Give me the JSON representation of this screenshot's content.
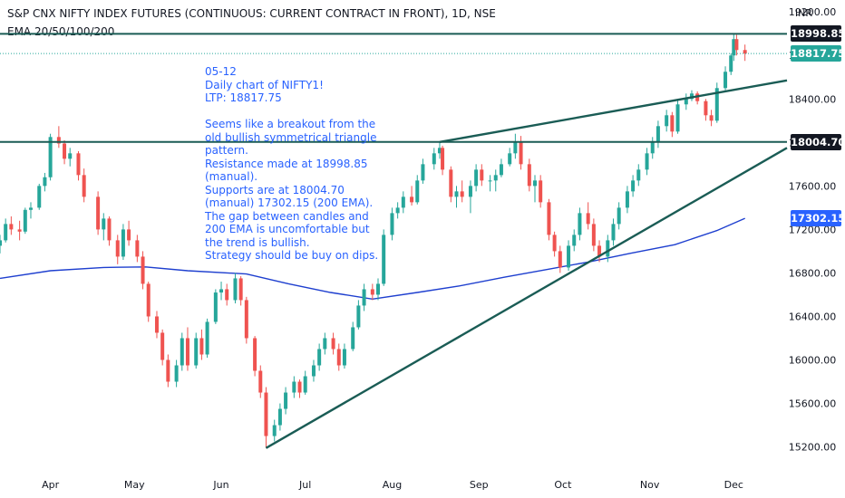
{
  "header": {
    "title": "S&P CNX NIFTY INDEX FUTURES (CONTINUOUS: CURRENT CONTRACT IN FRONT), 1D, NSE",
    "indicator": "EMA 20/50/100/200"
  },
  "currency": "INR",
  "annotation": "05-12\nDaily chart of NIFTY1!\nLTP: 18817.75\n\nSeems like a breakout from the\nold bullish symmetrical triangle\npattern.\nResistance made at 18998.85\n(manual).\nSupports are at 18004.70\n(manual) 17302.15 (200 EMA).\nThe gap between candles and\n200 EMA is uncomfortable but\nthe trend is bullish.\nStrategy should be buy on dips.",
  "price_tags": [
    {
      "label": "18998.85",
      "value": 18998.85,
      "bg": "#131722",
      "fg": "#ffffff"
    },
    {
      "label": "18817.75",
      "value": 18817.75,
      "bg": "#26a69a",
      "fg": "#ffffff"
    },
    {
      "label": "18004.70",
      "value": 18004.7,
      "bg": "#131722",
      "fg": "#ffffff"
    },
    {
      "label": "17302.15",
      "value": 17302.15,
      "bg": "#2962ff",
      "fg": "#ffffff"
    }
  ],
  "colors": {
    "up": "#26a69a",
    "down": "#ef5350",
    "ema": "#1e3fcf",
    "lines": "#1a5c55"
  },
  "chart_data": {
    "type": "candlestick",
    "title": "S&P CNX NIFTY INDEX FUTURES (CONTINUOUS: CURRENT CONTRACT IN FRONT), 1D, NSE",
    "x_ticks": [
      "Apr",
      "May",
      "Jun",
      "Jul",
      "Aug",
      "Sep",
      "Oct",
      "Nov",
      "Dec"
    ],
    "y_ticks": [
      15200,
      15600,
      16000,
      16400,
      16800,
      17200,
      17600,
      18000,
      18400,
      18800,
      19200
    ],
    "ylim": [
      14980,
      19310
    ],
    "x_range": [
      "2022-03-14",
      "2022-12-20"
    ],
    "last_price": 18817.75,
    "horizontal_lines": [
      18998.85,
      18004.7
    ],
    "trendlines": [
      {
        "from": [
          "2022-06-17",
          15190
        ],
        "to": [
          "2022-12-20",
          17950
        ]
      },
      {
        "from": [
          "2022-08-18",
          18004
        ],
        "to": [
          "2022-12-20",
          18570
        ]
      }
    ],
    "ema_200": [
      [
        "2022-03-14",
        16750
      ],
      [
        "2022-04-01",
        16820
      ],
      [
        "2022-04-20",
        16850
      ],
      [
        "2022-05-05",
        16855
      ],
      [
        "2022-05-20",
        16820
      ],
      [
        "2022-06-10",
        16790
      ],
      [
        "2022-06-25",
        16700
      ],
      [
        "2022-07-10",
        16620
      ],
      [
        "2022-07-25",
        16560
      ],
      [
        "2022-08-10",
        16620
      ],
      [
        "2022-08-25",
        16680
      ],
      [
        "2022-09-10",
        16760
      ],
      [
        "2022-09-25",
        16830
      ],
      [
        "2022-10-10",
        16900
      ],
      [
        "2022-10-25",
        16980
      ],
      [
        "2022-11-10",
        17060
      ],
      [
        "2022-11-25",
        17190
      ],
      [
        "2022-12-05",
        17302
      ]
    ],
    "candles": [
      [
        "2022-03-14",
        17050,
        17150,
        16980,
        17100
      ],
      [
        "2022-03-16",
        17100,
        17300,
        17080,
        17250
      ],
      [
        "2022-03-18",
        17250,
        17320,
        17150,
        17200
      ],
      [
        "2022-03-21",
        17200,
        17280,
        17100,
        17180
      ],
      [
        "2022-03-23",
        17180,
        17400,
        17160,
        17380
      ],
      [
        "2022-03-25",
        17380,
        17450,
        17300,
        17400
      ],
      [
        "2022-03-28",
        17400,
        17620,
        17380,
        17600
      ],
      [
        "2022-03-30",
        17600,
        17720,
        17550,
        17680
      ],
      [
        "2022-04-01",
        17680,
        18080,
        17650,
        18050
      ],
      [
        "2022-04-04",
        18050,
        18150,
        17950,
        17990
      ],
      [
        "2022-04-06",
        17990,
        18020,
        17800,
        17850
      ],
      [
        "2022-04-08",
        17850,
        17950,
        17780,
        17900
      ],
      [
        "2022-04-11",
        17900,
        17920,
        17650,
        17700
      ],
      [
        "2022-04-13",
        17700,
        17760,
        17450,
        17500
      ],
      [
        "2022-04-18",
        17500,
        17550,
        17150,
        17200
      ],
      [
        "2022-04-20",
        17200,
        17350,
        17100,
        17300
      ],
      [
        "2022-04-22",
        17300,
        17320,
        17050,
        17100
      ],
      [
        "2022-04-25",
        17100,
        17150,
        16880,
        16950
      ],
      [
        "2022-04-27",
        16950,
        17250,
        16920,
        17200
      ],
      [
        "2022-04-29",
        17200,
        17280,
        17050,
        17100
      ],
      [
        "2022-05-02",
        17100,
        17150,
        16900,
        16950
      ],
      [
        "2022-05-04",
        16950,
        17000,
        16650,
        16700
      ],
      [
        "2022-05-06",
        16700,
        16720,
        16350,
        16400
      ],
      [
        "2022-05-09",
        16400,
        16450,
        16200,
        16250
      ],
      [
        "2022-05-11",
        16250,
        16280,
        15950,
        16000
      ],
      [
        "2022-05-13",
        16000,
        16050,
        15750,
        15800
      ],
      [
        "2022-05-16",
        15800,
        16000,
        15750,
        15950
      ],
      [
        "2022-05-18",
        15950,
        16250,
        15900,
        16200
      ],
      [
        "2022-05-20",
        16200,
        16300,
        15900,
        15950
      ],
      [
        "2022-05-23",
        15950,
        16250,
        15920,
        16200
      ],
      [
        "2022-05-25",
        16200,
        16280,
        16000,
        16050
      ],
      [
        "2022-05-27",
        16050,
        16380,
        16020,
        16350
      ],
      [
        "2022-05-30",
        16350,
        16650,
        16330,
        16620
      ],
      [
        "2022-06-01",
        16620,
        16720,
        16550,
        16650
      ],
      [
        "2022-06-03",
        16650,
        16700,
        16500,
        16550
      ],
      [
        "2022-06-06",
        16550,
        16800,
        16520,
        16750
      ],
      [
        "2022-06-08",
        16750,
        16770,
        16500,
        16550
      ],
      [
        "2022-06-10",
        16550,
        16580,
        16150,
        16200
      ],
      [
        "2022-06-13",
        16200,
        16220,
        15850,
        15900
      ],
      [
        "2022-06-15",
        15900,
        15950,
        15650,
        15700
      ],
      [
        "2022-06-17",
        15700,
        15750,
        15190,
        15300
      ],
      [
        "2022-06-20",
        15300,
        15450,
        15250,
        15400
      ],
      [
        "2022-06-22",
        15400,
        15600,
        15350,
        15550
      ],
      [
        "2022-06-24",
        15550,
        15750,
        15500,
        15700
      ],
      [
        "2022-06-27",
        15700,
        15850,
        15650,
        15800
      ],
      [
        "2022-06-29",
        15800,
        15820,
        15650,
        15700
      ],
      [
        "2022-07-01",
        15700,
        15900,
        15680,
        15850
      ],
      [
        "2022-07-04",
        15850,
        16000,
        15800,
        15950
      ],
      [
        "2022-07-06",
        15950,
        16150,
        15900,
        16100
      ],
      [
        "2022-07-08",
        16100,
        16250,
        16050,
        16200
      ],
      [
        "2022-07-11",
        16200,
        16250,
        16050,
        16100
      ],
      [
        "2022-07-13",
        16100,
        16150,
        15900,
        15950
      ],
      [
        "2022-07-15",
        15950,
        16150,
        15920,
        16100
      ],
      [
        "2022-07-18",
        16100,
        16350,
        16080,
        16300
      ],
      [
        "2022-07-20",
        16300,
        16550,
        16280,
        16500
      ],
      [
        "2022-07-22",
        16500,
        16700,
        16450,
        16650
      ],
      [
        "2022-07-25",
        16650,
        16700,
        16550,
        16600
      ],
      [
        "2022-07-27",
        16600,
        16750,
        16550,
        16700
      ],
      [
        "2022-07-29",
        16700,
        17200,
        16680,
        17150
      ],
      [
        "2022-08-01",
        17150,
        17400,
        17100,
        17350
      ],
      [
        "2022-08-03",
        17350,
        17450,
        17300,
        17400
      ],
      [
        "2022-08-05",
        17400,
        17550,
        17350,
        17500
      ],
      [
        "2022-08-08",
        17500,
        17600,
        17420,
        17450
      ],
      [
        "2022-08-10",
        17450,
        17700,
        17430,
        17650
      ],
      [
        "2022-08-12",
        17650,
        17850,
        17620,
        17800
      ],
      [
        "2022-08-16",
        17800,
        17950,
        17750,
        17900
      ],
      [
        "2022-08-18",
        17900,
        18010,
        17850,
        17950
      ],
      [
        "2022-08-19",
        17950,
        17970,
        17700,
        17750
      ],
      [
        "2022-08-22",
        17750,
        17780,
        17450,
        17500
      ],
      [
        "2022-08-24",
        17500,
        17600,
        17400,
        17550
      ],
      [
        "2022-08-26",
        17550,
        17650,
        17450,
        17500
      ],
      [
        "2022-08-29",
        17500,
        17650,
        17350,
        17600
      ],
      [
        "2022-08-31",
        17600,
        17800,
        17550,
        17750
      ],
      [
        "2022-09-02",
        17750,
        17800,
        17600,
        17650
      ],
      [
        "2022-09-05",
        17650,
        17700,
        17550,
        17650
      ],
      [
        "2022-09-07",
        17650,
        17750,
        17550,
        17700
      ],
      [
        "2022-09-09",
        17700,
        17850,
        17680,
        17800
      ],
      [
        "2022-09-12",
        17800,
        17950,
        17780,
        17900
      ],
      [
        "2022-09-14",
        17900,
        18080,
        17850,
        18000
      ],
      [
        "2022-09-16",
        18000,
        18060,
        17750,
        17800
      ],
      [
        "2022-09-19",
        17800,
        17850,
        17550,
        17600
      ],
      [
        "2022-09-21",
        17600,
        17700,
        17450,
        17650
      ],
      [
        "2022-09-23",
        17650,
        17700,
        17400,
        17450
      ],
      [
        "2022-09-26",
        17450,
        17480,
        17100,
        17150
      ],
      [
        "2022-09-28",
        17150,
        17180,
        16950,
        17000
      ],
      [
        "2022-09-30",
        17000,
        17050,
        16800,
        16850
      ],
      [
        "2022-10-03",
        16850,
        17100,
        16820,
        17050
      ],
      [
        "2022-10-05",
        17050,
        17200,
        17000,
        17150
      ],
      [
        "2022-10-07",
        17150,
        17400,
        17100,
        17350
      ],
      [
        "2022-10-10",
        17350,
        17450,
        17200,
        17250
      ],
      [
        "2022-10-12",
        17250,
        17300,
        17000,
        17050
      ],
      [
        "2022-10-14",
        17050,
        17100,
        16900,
        16950
      ],
      [
        "2022-10-17",
        16950,
        17150,
        16900,
        17100
      ],
      [
        "2022-10-19",
        17100,
        17300,
        17050,
        17250
      ],
      [
        "2022-10-21",
        17250,
        17450,
        17200,
        17400
      ],
      [
        "2022-10-24",
        17400,
        17600,
        17350,
        17550
      ],
      [
        "2022-10-26",
        17550,
        17700,
        17500,
        17650
      ],
      [
        "2022-10-28",
        17650,
        17800,
        17600,
        17750
      ],
      [
        "2022-10-31",
        17750,
        17950,
        17700,
        17900
      ],
      [
        "2022-11-02",
        17900,
        18050,
        17850,
        18000
      ],
      [
        "2022-11-04",
        18000,
        18200,
        17950,
        18150
      ],
      [
        "2022-11-07",
        18150,
        18300,
        18100,
        18250
      ],
      [
        "2022-11-09",
        18250,
        18280,
        18050,
        18100
      ],
      [
        "2022-11-11",
        18100,
        18400,
        18080,
        18350
      ],
      [
        "2022-11-14",
        18350,
        18450,
        18300,
        18400
      ],
      [
        "2022-11-16",
        18400,
        18480,
        18380,
        18450
      ],
      [
        "2022-11-18",
        18450,
        18470,
        18350,
        18380
      ],
      [
        "2022-11-21",
        18380,
        18400,
        18200,
        18250
      ],
      [
        "2022-11-23",
        18250,
        18300,
        18150,
        18200
      ],
      [
        "2022-11-25",
        18200,
        18550,
        18180,
        18500
      ],
      [
        "2022-11-28",
        18500,
        18700,
        18480,
        18650
      ],
      [
        "2022-11-30",
        18650,
        18820,
        18620,
        18800
      ],
      [
        "2022-12-01",
        18800,
        18999,
        18750,
        18950
      ],
      [
        "2022-12-02",
        18950,
        18990,
        18800,
        18850
      ],
      [
        "2022-12-05",
        18850,
        18900,
        18750,
        18817.75
      ]
    ]
  }
}
